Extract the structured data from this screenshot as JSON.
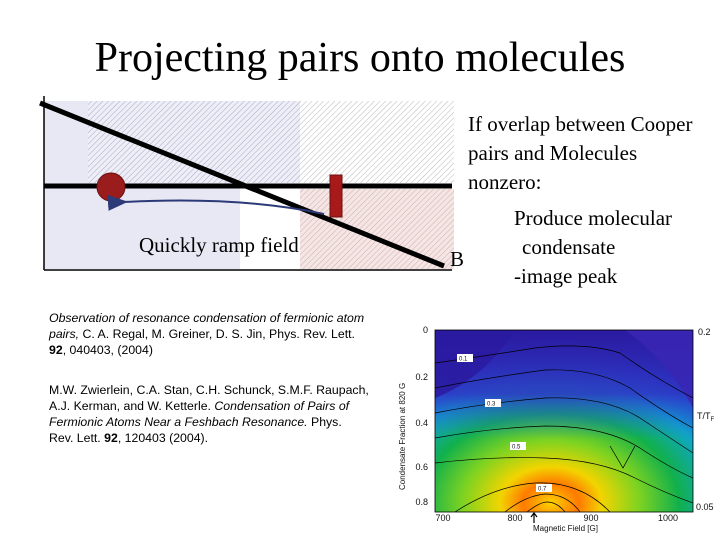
{
  "slide": {
    "title": "Projecting pairs onto molecules",
    "overlap_text": "If overlap between Cooper\npairs and Molecules\nnonzero:",
    "produce_lines": [
      "Produce molecular",
      "condensate",
      "-image peak"
    ],
    "b_label": "B",
    "ramp_label": "Quickly ramp field"
  },
  "references": {
    "ref1": {
      "title": "Observation of resonance condensation of fermionic atom pairs,",
      "authors": " C. A. Regal, M. Greiner, D. S. Jin, Phys. Rev. Lett. ",
      "volume": "92",
      "rest": ", 040403, (2004)"
    },
    "ref2": {
      "authors": " M.W. Zwierlein, C.A. Stan, C.H. Schunck, S.M.F. Raupach, A.J. Kerman, and W. Ketterle. ",
      "title": "Condensation of Pairs of Fermionic Atoms Near a Feshbach Resonance.",
      "journal": " Phys. Rev. Lett. ",
      "volume": "92",
      "rest": ", 120403 (2004)."
    }
  },
  "heatmap": {
    "ylabel": "Condensate Fraction at 820 G",
    "xlabel": "Magnetic Field [G]",
    "right_label": "T/T",
    "right_label_sub": "F",
    "y_ticks": [
      "0",
      "0.2",
      "0.4",
      "0.6",
      "0.8"
    ],
    "x_ticks": [
      "700",
      "800",
      "900",
      "1000"
    ],
    "right_ticks": [
      "0.2",
      "0.05"
    ],
    "contour_labels": [
      "0.1",
      "0.3",
      "0.5",
      "0.7"
    ],
    "colors": {
      "low": "#2b1aa8",
      "mid": "#14b84a",
      "high": "#e81414",
      "peak": "#f7e400"
    }
  }
}
